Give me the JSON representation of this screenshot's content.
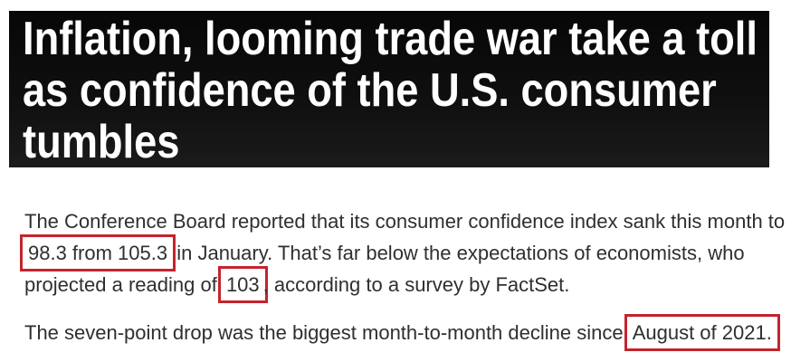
{
  "banner": {
    "background": "#0d0d0d",
    "text_color": "#ffffff",
    "headline_lines": [
      "Inflation, looming trade war take a toll",
      "as confidence of the U.S. consumer",
      "tumbles"
    ]
  },
  "article": {
    "text_color": "#2f2f2f",
    "highlight_border_color": "#c4242c",
    "paragraphs": [
      {
        "segments": [
          {
            "text": "The Conference Board reported that its consumer confidence index sank this month to ",
            "highlight": false
          },
          {
            "text": "98.3 from 105.3",
            "highlight": true
          },
          {
            "text": " in January. That’s far below the expectations of economists, who projected a reading of ",
            "highlight": false
          },
          {
            "text": "103",
            "highlight": true
          },
          {
            "text": ", according to a survey by FactSet.",
            "highlight": false
          }
        ]
      },
      {
        "segments": [
          {
            "text": "The seven-point drop was the biggest month-to-month decline since ",
            "highlight": false
          },
          {
            "text": "August of 2021.",
            "highlight": true
          }
        ]
      }
    ]
  }
}
